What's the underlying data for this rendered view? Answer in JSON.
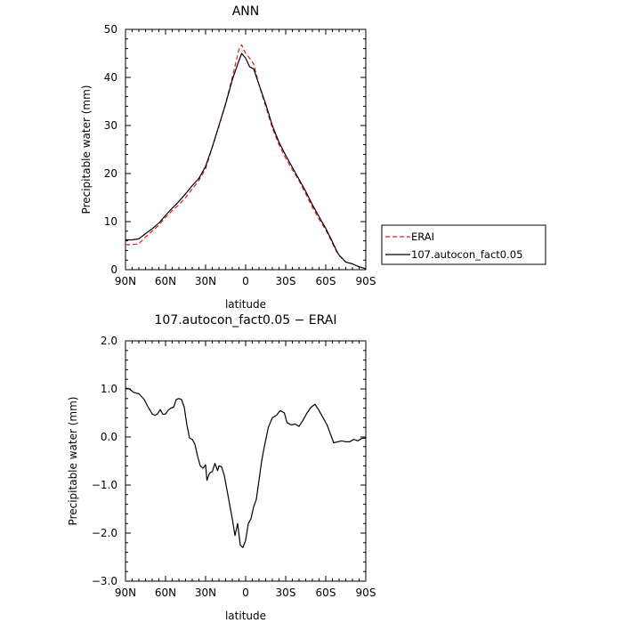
{
  "chart_data": [
    {
      "type": "line",
      "title": "ANN",
      "xlabel": "latitude",
      "ylabel": "Precipitable water (mm)",
      "xlim": [
        90,
        -90
      ],
      "ylim": [
        0,
        50
      ],
      "x_tick_labels": [
        "90N",
        "60N",
        "30N",
        "0",
        "30S",
        "60S",
        "90S"
      ],
      "x_tick_values": [
        90,
        60,
        30,
        0,
        -30,
        -60,
        -90
      ],
      "y_tick_values": [
        0,
        10,
        20,
        30,
        40,
        50
      ],
      "y_tick_labels": [
        "0",
        "10",
        "20",
        "30",
        "40",
        "50"
      ],
      "legend_position": "right",
      "series": [
        {
          "name": "ERAI",
          "color": "#e41a1c",
          "dash": "dashed",
          "points": [
            [
              90,
              5.2
            ],
            [
              85,
              5.2
            ],
            [
              80,
              5.4
            ],
            [
              75,
              6.8
            ],
            [
              70,
              8.0
            ],
            [
              65,
              9.3
            ],
            [
              60,
              10.9
            ],
            [
              55,
              12.3
            ],
            [
              50,
              13.5
            ],
            [
              45,
              15.0
            ],
            [
              40,
              16.8
            ],
            [
              35,
              18.6
            ],
            [
              30,
              21.0
            ],
            [
              25,
              25.5
            ],
            [
              20,
              29.8
            ],
            [
              15,
              34.5
            ],
            [
              10,
              40.0
            ],
            [
              5,
              45.8
            ],
            [
              3,
              46.8
            ],
            [
              0,
              45.0
            ],
            [
              -3,
              44.0
            ],
            [
              -6,
              42.8
            ],
            [
              -10,
              38.5
            ],
            [
              -15,
              34.0
            ],
            [
              -20,
              29.5
            ],
            [
              -25,
              26.0
            ],
            [
              -30,
              23.2
            ],
            [
              -35,
              20.8
            ],
            [
              -40,
              18.5
            ],
            [
              -45,
              15.8
            ],
            [
              -50,
              13.0
            ],
            [
              -55,
              10.5
            ],
            [
              -60,
              8.3
            ],
            [
              -65,
              5.5
            ],
            [
              -68,
              3.8
            ],
            [
              -70,
              3.0
            ],
            [
              -75,
              1.6
            ],
            [
              -80,
              1.2
            ],
            [
              -85,
              0.6
            ],
            [
              -90,
              0.2
            ]
          ]
        },
        {
          "name": "107.autocon_fact0.05",
          "color": "#000000",
          "dash": "solid",
          "points": [
            [
              90,
              6.2
            ],
            [
              85,
              6.2
            ],
            [
              80,
              6.4
            ],
            [
              75,
              7.5
            ],
            [
              70,
              8.5
            ],
            [
              65,
              9.7
            ],
            [
              60,
              11.3
            ],
            [
              55,
              12.8
            ],
            [
              50,
              14.2
            ],
            [
              45,
              15.8
            ],
            [
              40,
              17.5
            ],
            [
              35,
              19.0
            ],
            [
              30,
              21.5
            ],
            [
              25,
              25.5
            ],
            [
              20,
              30.0
            ],
            [
              15,
              34.5
            ],
            [
              10,
              39.5
            ],
            [
              5,
              43.5
            ],
            [
              3,
              45.0
            ],
            [
              0,
              44.0
            ],
            [
              -3,
              42.2
            ],
            [
              -6,
              41.8
            ],
            [
              -10,
              38.5
            ],
            [
              -15,
              34.5
            ],
            [
              -20,
              30.0
            ],
            [
              -25,
              26.5
            ],
            [
              -30,
              23.8
            ],
            [
              -35,
              21.3
            ],
            [
              -40,
              18.8
            ],
            [
              -45,
              16.3
            ],
            [
              -50,
              13.5
            ],
            [
              -55,
              11.0
            ],
            [
              -60,
              8.6
            ],
            [
              -65,
              5.8
            ],
            [
              -68,
              4.0
            ],
            [
              -70,
              3.0
            ],
            [
              -75,
              1.6
            ],
            [
              -80,
              1.2
            ],
            [
              -85,
              0.6
            ],
            [
              -90,
              0.2
            ]
          ]
        }
      ]
    },
    {
      "type": "line",
      "title": "107.autocon_fact0.05 − ERAI",
      "xlabel": "latitude",
      "ylabel": "Precipitable water (mm)",
      "xlim": [
        90,
        -90
      ],
      "ylim": [
        -3,
        2
      ],
      "x_tick_labels": [
        "90N",
        "60N",
        "30N",
        "0",
        "30S",
        "60S",
        "90S"
      ],
      "x_tick_values": [
        90,
        60,
        30,
        0,
        -30,
        -60,
        -90
      ],
      "y_tick_values": [
        2,
        1,
        0,
        -1,
        -2,
        -3
      ],
      "y_tick_labels": [
        "2.0",
        "1.0",
        "0.0",
        "−1.0",
        "−2.0",
        "−3.0"
      ],
      "series": [
        {
          "name": "",
          "color": "#000000",
          "dash": "solid",
          "points": [
            [
              90,
              1.02
            ],
            [
              87,
              1.0
            ],
            [
              84,
              0.93
            ],
            [
              80,
              0.9
            ],
            [
              76,
              0.78
            ],
            [
              73,
              0.62
            ],
            [
              70,
              0.48
            ],
            [
              68,
              0.45
            ],
            [
              66,
              0.48
            ],
            [
              64,
              0.57
            ],
            [
              62,
              0.47
            ],
            [
              60,
              0.48
            ],
            [
              58,
              0.56
            ],
            [
              56,
              0.6
            ],
            [
              54,
              0.62
            ],
            [
              52,
              0.78
            ],
            [
              50,
              0.8
            ],
            [
              48,
              0.78
            ],
            [
              46,
              0.62
            ],
            [
              44,
              0.25
            ],
            [
              42,
              -0.02
            ],
            [
              40,
              -0.05
            ],
            [
              38,
              -0.15
            ],
            [
              36,
              -0.4
            ],
            [
              34,
              -0.6
            ],
            [
              32,
              -0.65
            ],
            [
              30,
              -0.58
            ],
            [
              29,
              -0.9
            ],
            [
              27,
              -0.75
            ],
            [
              25,
              -0.72
            ],
            [
              23,
              -0.55
            ],
            [
              21,
              -0.7
            ],
            [
              20,
              -0.6
            ],
            [
              18,
              -0.62
            ],
            [
              16,
              -0.8
            ],
            [
              14,
              -1.1
            ],
            [
              12,
              -1.4
            ],
            [
              10,
              -1.7
            ],
            [
              8,
              -2.05
            ],
            [
              6,
              -1.8
            ],
            [
              4,
              -2.25
            ],
            [
              2,
              -2.3
            ],
            [
              0,
              -2.15
            ],
            [
              -2,
              -1.8
            ],
            [
              -4,
              -1.7
            ],
            [
              -6,
              -1.45
            ],
            [
              -8,
              -1.3
            ],
            [
              -10,
              -0.9
            ],
            [
              -12,
              -0.5
            ],
            [
              -14,
              -0.2
            ],
            [
              -17,
              0.2
            ],
            [
              -20,
              0.4
            ],
            [
              -23,
              0.45
            ],
            [
              -26,
              0.55
            ],
            [
              -29,
              0.5
            ],
            [
              -31,
              0.3
            ],
            [
              -34,
              0.25
            ],
            [
              -37,
              0.27
            ],
            [
              -40,
              0.22
            ],
            [
              -43,
              0.35
            ],
            [
              -46,
              0.5
            ],
            [
              -49,
              0.62
            ],
            [
              -52,
              0.68
            ],
            [
              -55,
              0.55
            ],
            [
              -58,
              0.4
            ],
            [
              -61,
              0.25
            ],
            [
              -63,
              0.1
            ],
            [
              -66,
              -0.12
            ],
            [
              -69,
              -0.1
            ],
            [
              -72,
              -0.08
            ],
            [
              -75,
              -0.1
            ],
            [
              -78,
              -0.1
            ],
            [
              -81,
              -0.05
            ],
            [
              -84,
              -0.08
            ],
            [
              -87,
              -0.03
            ],
            [
              -90,
              -0.02
            ]
          ]
        }
      ]
    }
  ]
}
